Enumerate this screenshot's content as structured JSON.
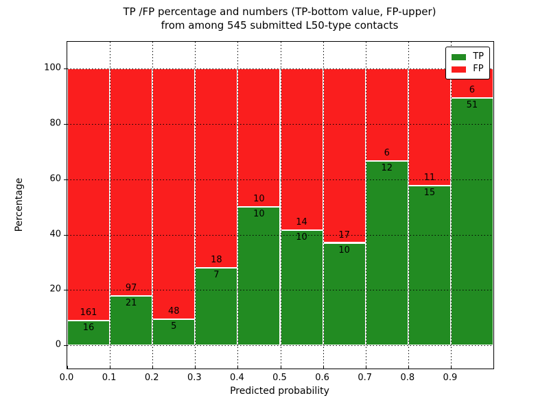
{
  "title": {
    "line1": "TP /FP percentage and numbers (TP-bottom value, FP-upper)",
    "line2": "from among 545 submitted L50-type contacts"
  },
  "axes": {
    "x_label": "Predicted probability",
    "y_label": "Percentage",
    "x_tick_labels": [
      "0.0",
      "0.1",
      "0.2",
      "0.3",
      "0.4",
      "0.5",
      "0.6",
      "0.7",
      "0.8",
      "0.9"
    ],
    "y_tick_values": [
      0,
      20,
      40,
      60,
      80,
      100
    ]
  },
  "legend": {
    "entries": [
      {
        "label": "TP",
        "color_key": "tp"
      },
      {
        "label": "FP",
        "color_key": "fp"
      }
    ]
  },
  "colors": {
    "tp": "#228b22",
    "fp": "#fa1e1e"
  },
  "chart_data": {
    "type": "bar",
    "stacked": true,
    "normalized": "each bin scaled to 100%",
    "title": "TP /FP percentage and numbers (TP-bottom value, FP-upper) from among 545 submitted L50-type contacts",
    "xlabel": "Predicted probability",
    "ylabel": "Percentage",
    "xlim": [
      0.0,
      1.0
    ],
    "ylim": [
      -8.4,
      109.8
    ],
    "grid": "dotted black, horizontal every 20%, vertical every 0.1",
    "legend_position": "upper right",
    "total_contacts": 545,
    "bin_width": 0.1,
    "categories": [
      "0.0-0.1",
      "0.1-0.2",
      "0.2-0.3",
      "0.3-0.4",
      "0.4-0.5",
      "0.5-0.6",
      "0.6-0.7",
      "0.7-0.8",
      "0.8-0.9",
      "0.9-1.0"
    ],
    "series": [
      {
        "name": "TP",
        "position": "bottom",
        "counts": [
          16,
          21,
          5,
          7,
          10,
          10,
          10,
          12,
          15,
          51
        ]
      },
      {
        "name": "FP",
        "position": "top",
        "counts": [
          161,
          97,
          48,
          18,
          10,
          14,
          17,
          6,
          11,
          6
        ]
      }
    ]
  }
}
